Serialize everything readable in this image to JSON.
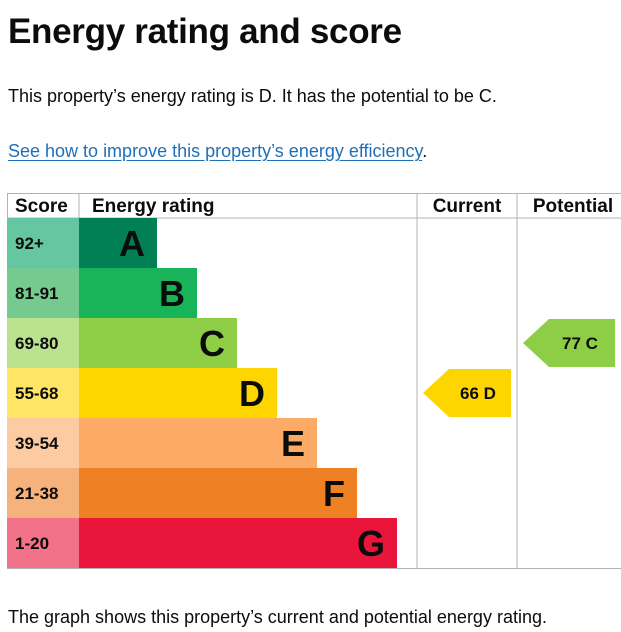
{
  "page": {
    "title": "Energy rating and score",
    "summary": "This property’s energy rating is D. It has the potential to be C.",
    "link_text": "See how to improve this property’s energy efficiency",
    "link_suffix": ".",
    "footer": "The graph shows this property’s current and potential energy rating."
  },
  "chart_data": {
    "type": "table",
    "columns": [
      "Score",
      "Energy rating",
      "Current",
      "Potential"
    ],
    "bands": [
      {
        "score": "92+",
        "rating": "A",
        "min": 92,
        "max": 100,
        "color": "#008054",
        "score_bg": "#64c7a1"
      },
      {
        "score": "81-91",
        "rating": "B",
        "min": 81,
        "max": 91,
        "color": "#19b459",
        "score_bg": "#75cb8f"
      },
      {
        "score": "69-80",
        "rating": "C",
        "min": 69,
        "max": 80,
        "color": "#8dce46",
        "score_bg": "#bbe28f"
      },
      {
        "score": "55-68",
        "rating": "D",
        "min": 55,
        "max": 68,
        "color": "#ffd500",
        "score_bg": "#ffe566"
      },
      {
        "score": "39-54",
        "rating": "E",
        "min": 39,
        "max": 54,
        "color": "#fcaa65",
        "score_bg": "#fdcba2"
      },
      {
        "score": "21-38",
        "rating": "F",
        "min": 21,
        "max": 38,
        "color": "#ef8023",
        "score_bg": "#f5b27a"
      },
      {
        "score": "1-20",
        "rating": "G",
        "min": 1,
        "max": 20,
        "color": "#e9153b",
        "score_bg": "#f27389"
      }
    ],
    "current": {
      "score": 66,
      "rating": "D",
      "color": "#ffd500"
    },
    "potential": {
      "score": 77,
      "rating": "C",
      "color": "#8dce46"
    },
    "grid_color": "#b1b4b6"
  }
}
